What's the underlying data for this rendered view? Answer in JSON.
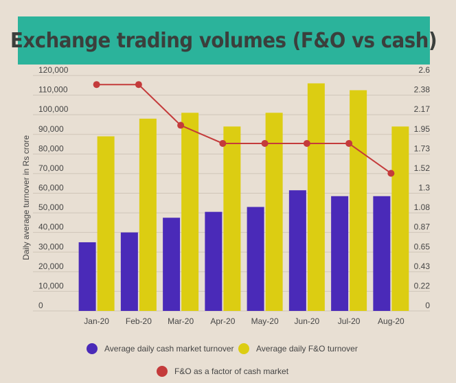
{
  "header": {
    "title": "Exchange trading volumes (F&O vs cash)"
  },
  "colors": {
    "background": "#e8dfd3",
    "title_bar": "#2bb39b",
    "cash": "#4a2ab8",
    "fo": "#dccd12",
    "factor": "#c43b3b",
    "grid": "#cfc5b8"
  },
  "chart_data": {
    "type": "bar",
    "categories": [
      "Jan-20",
      "Feb-20",
      "Mar-20",
      "Apr-20",
      "May-20",
      "Jun-20",
      "Jul-20",
      "Aug-20"
    ],
    "series": [
      {
        "name": "Average daily cash market turnover",
        "type": "bar",
        "axis": "left",
        "values": [
          35000,
          40000,
          47500,
          50500,
          53000,
          61500,
          58500,
          58500
        ]
      },
      {
        "name": "Average daily F&O turnover",
        "type": "bar",
        "axis": "left",
        "values": [
          89000,
          98000,
          101000,
          94000,
          101000,
          116000,
          112500,
          94000
        ]
      },
      {
        "name": "F&O as a factor of cash market",
        "type": "line",
        "axis": "right",
        "values": [
          2.5,
          2.5,
          2.05,
          1.85,
          1.85,
          1.85,
          1.85,
          1.52
        ]
      }
    ],
    "ylabel": "Daily average turnover in Rs crore",
    "ylim": [
      0,
      120000
    ],
    "yticks": [
      "0",
      "10,000",
      "20,000",
      "30,000",
      "40,000",
      "50,000",
      "60,000",
      "70,000",
      "80,000",
      "90,000",
      "100,000",
      "110,000",
      "120,000"
    ],
    "y2lim": [
      0,
      2.6
    ],
    "y2ticks": [
      "0",
      "0.22",
      "0.43",
      "0.65",
      "0.87",
      "1.08",
      "1.3",
      "1.52",
      "1.73",
      "1.95",
      "2.17",
      "2.38",
      "2.6"
    ],
    "grid": true,
    "legend": [
      {
        "label": "Average daily cash market turnover",
        "color": "#4a2ab8"
      },
      {
        "label": "Average daily F&O turnover",
        "color": "#dccd12"
      },
      {
        "label": "F&O as a factor of cash market",
        "color": "#c43b3b"
      }
    ]
  }
}
